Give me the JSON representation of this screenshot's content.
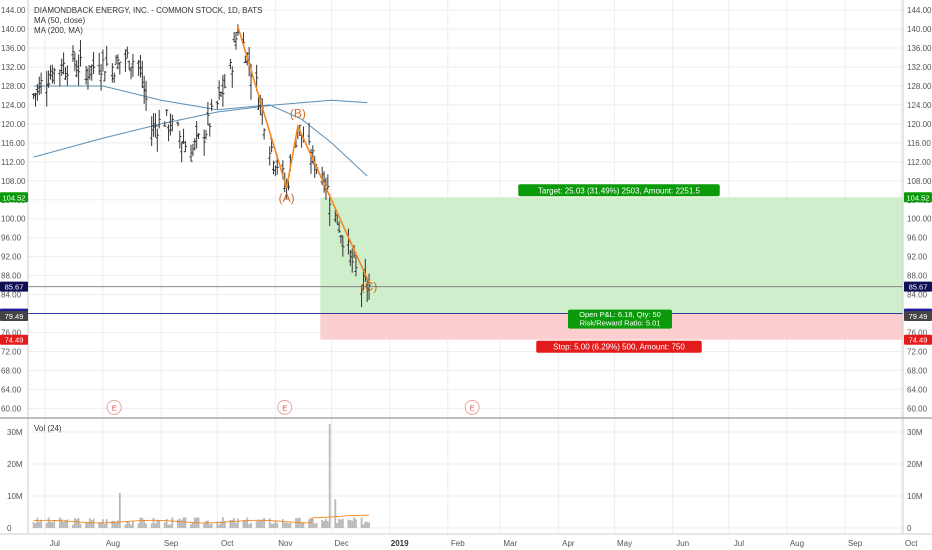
{
  "header": {
    "title": "DIAMONDBACK ENERGY, INC. - COMMON STOCK, 1D, BATS",
    "ma50": "MA (50, close)",
    "ma200": "MA (200, MA)"
  },
  "colors": {
    "bar": "#333333",
    "ma": "#5b8fb5",
    "wave": "#f5871f",
    "wave_label": "#d2691e",
    "target_zone": "#cfeecb",
    "stop_zone": "#fbcfcf",
    "target_badge": "#0a9a0a",
    "stop_badge": "#e41b1b",
    "current_price": "#0f0f55",
    "entry": "#1c1c9c",
    "grid": "#eeeeee"
  },
  "price_axis": {
    "ticks": [
      "144.00",
      "140.00",
      "136.00",
      "132.00",
      "128.00",
      "124.00",
      "120.00",
      "116.00",
      "112.00",
      "108.00",
      "104.00",
      "100.00",
      "96.00",
      "92.00",
      "88.00",
      "84.00",
      "80.00",
      "76.00",
      "72.00",
      "68.00",
      "64.00",
      "60.00"
    ],
    "badges": [
      {
        "label": "104.52",
        "value": 104.52,
        "color": "#0a9a0a"
      },
      {
        "label": "85.67",
        "value": 85.67,
        "color": "#0f0f55"
      },
      {
        "label": "80.00",
        "value": 80.0,
        "color": "#1c1c9c"
      },
      {
        "label": "79.49",
        "value": 79.49,
        "color": "#444444"
      },
      {
        "label": "74.49",
        "value": 74.49,
        "color": "#e41b1b"
      }
    ]
  },
  "volume_panel": {
    "title": "Vol (24)",
    "ticks": [
      "30M",
      "20M",
      "10M",
      "0"
    ]
  },
  "time_axis": {
    "labels": [
      "Jul",
      "Aug",
      "Sep",
      "Oct",
      "Nov",
      "Dec",
      "2019",
      "Feb",
      "Mar",
      "Apr",
      "May",
      "Jun",
      "Jul",
      "Aug",
      "Sep",
      "Oct"
    ]
  },
  "earnings_marker": "E",
  "wave_labels": [
    "(A)",
    "(B)",
    "(C)"
  ],
  "position": {
    "target_text": "Target: 25.03 (31.49%) 2503, Amount: 2251.5",
    "pnl_text": "Open P&L: 6.18, Qty: 50",
    "rr_text": "Risk/Reward Ratio: 5.01",
    "stop_text": "Stop: 5.00 (6.29%) 500, Amount: 750"
  },
  "chart_data": {
    "type": "candlestick",
    "title": "DIAMONDBACK ENERGY, INC. - COMMON STOCK, 1D, BATS",
    "interval": "1D",
    "y_range": [
      58,
      146
    ],
    "grid": true,
    "x_ticks": [
      "Jul",
      "Aug",
      "Sep",
      "Oct",
      "Nov",
      "Dec",
      "2019",
      "Feb",
      "Mar",
      "Apr",
      "May",
      "Jun",
      "Jul",
      "Aug",
      "Sep",
      "Oct"
    ],
    "price_path": [
      {
        "date": "2018-06-25",
        "close": 126
      },
      {
        "date": "2018-07-02",
        "close": 130
      },
      {
        "date": "2018-07-09",
        "close": 132
      },
      {
        "date": "2018-07-16",
        "close": 133
      },
      {
        "date": "2018-07-23",
        "close": 131
      },
      {
        "date": "2018-07-30",
        "close": 133
      },
      {
        "date": "2018-08-06",
        "close": 132
      },
      {
        "date": "2018-08-13",
        "close": 134
      },
      {
        "date": "2018-08-20",
        "close": 133
      },
      {
        "date": "2018-08-27",
        "close": 119
      },
      {
        "date": "2018-09-03",
        "close": 121
      },
      {
        "date": "2018-09-10",
        "close": 118
      },
      {
        "date": "2018-09-17",
        "close": 114
      },
      {
        "date": "2018-09-24",
        "close": 118
      },
      {
        "date": "2018-10-01",
        "close": 124
      },
      {
        "date": "2018-10-08",
        "close": 131
      },
      {
        "date": "2018-10-12",
        "close": 140.5
      },
      {
        "date": "2018-10-22",
        "close": 128
      },
      {
        "date": "2018-10-29",
        "close": 116
      },
      {
        "date": "2018-11-07",
        "close": 106.5
      },
      {
        "date": "2018-11-13",
        "close": 119.5
      },
      {
        "date": "2018-11-20",
        "close": 113
      },
      {
        "date": "2018-11-26",
        "close": 110
      },
      {
        "date": "2018-12-03",
        "close": 101
      },
      {
        "date": "2018-12-10",
        "close": 93
      },
      {
        "date": "2018-12-17",
        "close": 85.67
      }
    ],
    "ma50": [
      {
        "date": "2018-06-25",
        "value": 128
      },
      {
        "date": "2018-08-01",
        "value": 128
      },
      {
        "date": "2018-09-01",
        "value": 125
      },
      {
        "date": "2018-10-01",
        "value": 123
      },
      {
        "date": "2018-10-29",
        "value": 124
      },
      {
        "date": "2018-11-15",
        "value": 121
      },
      {
        "date": "2018-12-01",
        "value": 116
      },
      {
        "date": "2018-12-20",
        "value": 109
      }
    ],
    "ma200": [
      {
        "date": "2018-06-25",
        "value": 113
      },
      {
        "date": "2018-08-01",
        "value": 117
      },
      {
        "date": "2018-09-01",
        "value": 120
      },
      {
        "date": "2018-10-01",
        "value": 122.5
      },
      {
        "date": "2018-11-01",
        "value": 124
      },
      {
        "date": "2018-12-01",
        "value": 125
      },
      {
        "date": "2018-12-20",
        "value": 124.5
      }
    ],
    "abc_wave": [
      {
        "label": "",
        "date": "2018-10-12",
        "price": 140.5
      },
      {
        "label": "(A)",
        "date": "2018-11-07",
        "price": 106.5
      },
      {
        "label": "(B)",
        "date": "2018-11-13",
        "price": 119.5
      },
      {
        "label": "(C)",
        "date": "2018-12-21",
        "price": 86.5
      }
    ],
    "short_position": {
      "entry": 80.0,
      "target": 104.52,
      "stop": 74.49,
      "current": 85.67,
      "level": 79.49
    },
    "earnings_dates": [
      "2018-08-07",
      "2018-11-06",
      "2019-02-14"
    ],
    "volume": {
      "unit": "M",
      "y_range": [
        0,
        33
      ],
      "notable": [
        {
          "date": "2018-08-10",
          "value": 11
        },
        {
          "date": "2018-11-30",
          "value": 32.5
        },
        {
          "date": "2018-12-03",
          "value": 9
        }
      ]
    }
  }
}
